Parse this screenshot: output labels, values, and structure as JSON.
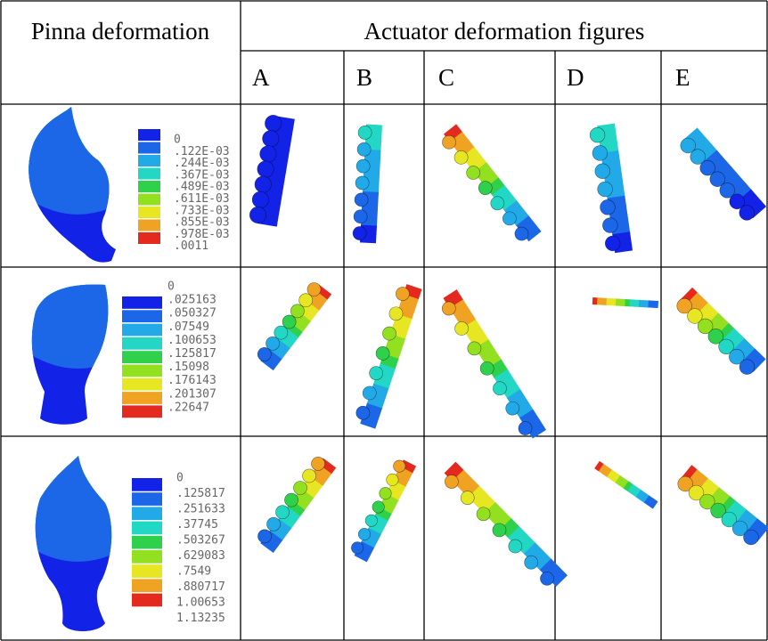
{
  "header": {
    "left": "Pinna deformation",
    "right": "Actuator deformation figures",
    "columns": [
      "A",
      "B",
      "C",
      "D",
      "E"
    ]
  },
  "rows": [
    {
      "legend": [
        "0",
        ".122E-03",
        ".244E-03",
        ".367E-03",
        ".489E-03",
        ".611E-03",
        ".733E-03",
        ".855E-03",
        ".978E-03",
        ".0011"
      ]
    },
    {
      "legend": [
        "0",
        ".025163",
        ".050327",
        ".07549",
        ".100653",
        ".125817",
        ".15098",
        ".176143",
        ".201307",
        ".22647"
      ]
    },
    {
      "legend": [
        "0",
        ".125817",
        ".251633",
        ".37745",
        ".503267",
        ".629083",
        ".7549",
        ".880717",
        "1.00653",
        "1.13235"
      ]
    }
  ]
}
